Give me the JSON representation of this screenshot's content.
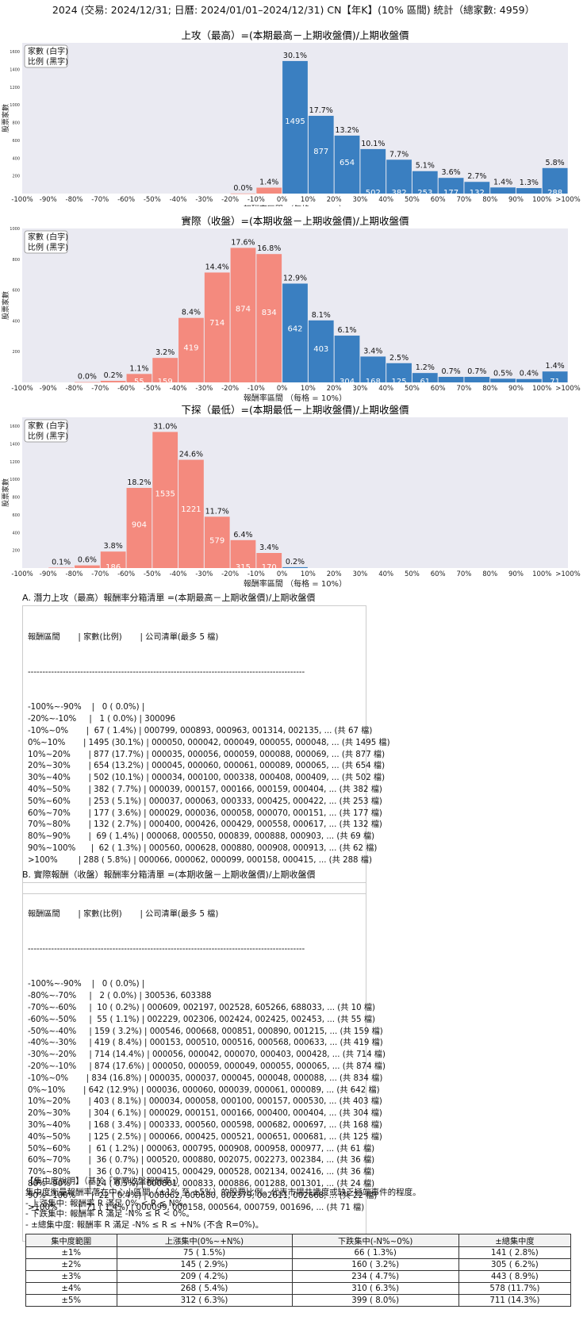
{
  "title": "2024 (交易: 2024/12/31; 日曆: 2024/01/01–2024/12/31) CN【年K】(10% 區間) 統計（總家數: 4959）",
  "legend": {
    "line1": "家數 (白字)",
    "line2": "比例 (黑字)"
  },
  "colors": {
    "positive": "#3a7fc1",
    "negative": "#f48a7e",
    "background": "#eaeaf2"
  },
  "chart_data": [
    {
      "type": "bar",
      "title": "上攻（最高）=(本期最高－上期收盤價)/上期收盤價",
      "xlabel": "報酬率區間 （每格 = 10%）",
      "ylabel": "股票家數",
      "ylim": [
        0,
        1700
      ],
      "yticks": [
        200,
        400,
        600,
        800,
        1000,
        1200,
        1400,
        1600
      ],
      "x_tick_labels": [
        "-100%",
        "-90%",
        "-80%",
        "-70%",
        "-60%",
        "-50%",
        "-40%",
        "-30%",
        "-20%",
        "-10%",
        "0%",
        "10%",
        "20%",
        "30%",
        "40%",
        "50%",
        "60%",
        "70%",
        "80%",
        "90%",
        "100%",
        ">100%"
      ],
      "bins": [
        {
          "bin": "-20%~-10%",
          "count": 1,
          "pct": "0.0%",
          "sign": "neg"
        },
        {
          "bin": "-10%~0%",
          "count": 67,
          "pct": "1.4%",
          "sign": "neg"
        },
        {
          "bin": "0%~10%",
          "count": 1495,
          "pct": "30.1%",
          "sign": "pos"
        },
        {
          "bin": "10%~20%",
          "count": 877,
          "pct": "17.7%",
          "sign": "pos"
        },
        {
          "bin": "20%~30%",
          "count": 654,
          "pct": "13.2%",
          "sign": "pos"
        },
        {
          "bin": "30%~40%",
          "count": 502,
          "pct": "10.1%",
          "sign": "pos"
        },
        {
          "bin": "40%~50%",
          "count": 382,
          "pct": "7.7%",
          "sign": "pos"
        },
        {
          "bin": "50%~60%",
          "count": 253,
          "pct": "5.1%",
          "sign": "pos"
        },
        {
          "bin": "60%~70%",
          "count": 177,
          "pct": "3.6%",
          "sign": "pos"
        },
        {
          "bin": "70%~80%",
          "count": 132,
          "pct": "2.7%",
          "sign": "pos"
        },
        {
          "bin": "80%~90%",
          "count": 69,
          "pct": "1.4%",
          "sign": "pos"
        },
        {
          "bin": "90%~100%",
          "count": 62,
          "pct": "1.3%",
          "sign": "pos"
        },
        {
          "bin": ">100%",
          "count": 288,
          "pct": "5.8%",
          "sign": "pos"
        }
      ]
    },
    {
      "type": "bar",
      "title": "實際（收盤）=(本期收盤－上期收盤價)/上期收盤價",
      "xlabel": "報酬率區間 （每格 = 10%）",
      "ylabel": "股票家數",
      "ylim": [
        0,
        1000
      ],
      "yticks": [
        200,
        400,
        600,
        800,
        1000
      ],
      "x_tick_labels": [
        "-100%",
        "-90%",
        "-80%",
        "-70%",
        "-60%",
        "-50%",
        "-40%",
        "-30%",
        "-20%",
        "-10%",
        "0%",
        "10%",
        "20%",
        "30%",
        "40%",
        "50%",
        "60%",
        "70%",
        "80%",
        "90%",
        "100%",
        ">100%"
      ],
      "bins": [
        {
          "bin": "-80%~-70%",
          "count": 2,
          "pct": "0.0%",
          "sign": "neg"
        },
        {
          "bin": "-70%~-60%",
          "count": 10,
          "pct": "0.2%",
          "sign": "neg"
        },
        {
          "bin": "-60%~-50%",
          "count": 55,
          "pct": "1.1%",
          "sign": "neg"
        },
        {
          "bin": "-50%~-40%",
          "count": 159,
          "pct": "3.2%",
          "sign": "neg"
        },
        {
          "bin": "-40%~-30%",
          "count": 419,
          "pct": "8.4%",
          "sign": "neg"
        },
        {
          "bin": "-30%~-20%",
          "count": 714,
          "pct": "14.4%",
          "sign": "neg"
        },
        {
          "bin": "-20%~-10%",
          "count": 874,
          "pct": "17.6%",
          "sign": "neg"
        },
        {
          "bin": "-10%~0%",
          "count": 834,
          "pct": "16.8%",
          "sign": "neg"
        },
        {
          "bin": "0%~10%",
          "count": 642,
          "pct": "12.9%",
          "sign": "pos"
        },
        {
          "bin": "10%~20%",
          "count": 403,
          "pct": "8.1%",
          "sign": "pos"
        },
        {
          "bin": "20%~30%",
          "count": 304,
          "pct": "6.1%",
          "sign": "pos"
        },
        {
          "bin": "30%~40%",
          "count": 168,
          "pct": "3.4%",
          "sign": "pos"
        },
        {
          "bin": "40%~50%",
          "count": 125,
          "pct": "2.5%",
          "sign": "pos"
        },
        {
          "bin": "50%~60%",
          "count": 61,
          "pct": "1.2%",
          "sign": "pos"
        },
        {
          "bin": "60%~70%",
          "count": 36,
          "pct": "0.7%",
          "sign": "pos"
        },
        {
          "bin": "70%~80%",
          "count": 36,
          "pct": "0.7%",
          "sign": "pos"
        },
        {
          "bin": "80%~90%",
          "count": 24,
          "pct": "0.5%",
          "sign": "pos"
        },
        {
          "bin": "90%~100%",
          "count": 22,
          "pct": "0.4%",
          "sign": "pos"
        },
        {
          "bin": ">100%",
          "count": 71,
          "pct": "1.4%",
          "sign": "pos"
        }
      ]
    },
    {
      "type": "bar",
      "title": "下探（最低）=(本期最低－上期收盤價)/上期收盤價",
      "xlabel": "報酬率區間 （每格 = 10%）",
      "ylabel": "股票家數",
      "ylim": [
        0,
        1700
      ],
      "yticks": [
        200,
        400,
        600,
        800,
        1000,
        1200,
        1400,
        1600
      ],
      "x_tick_labels": [
        "-100%",
        "-90%",
        "-80%",
        "-70%",
        "-60%",
        "-50%",
        "-40%",
        "-30%",
        "-20%",
        "-10%",
        "0%",
        "10%",
        "20%",
        "30%",
        "40%",
        "50%",
        "60%",
        "70%",
        "80%",
        "90%",
        "100%",
        ">100%"
      ],
      "bins": [
        {
          "bin": "-90%~-80%",
          "count": 5,
          "pct": "0.1%",
          "sign": "neg"
        },
        {
          "bin": "-80%~-70%",
          "count": 30,
          "pct": "0.6%",
          "sign": "neg"
        },
        {
          "bin": "-70%~-60%",
          "count": 186,
          "pct": "3.8%",
          "sign": "neg"
        },
        {
          "bin": "-60%~-50%",
          "count": 904,
          "pct": "18.2%",
          "sign": "neg"
        },
        {
          "bin": "-50%~-40%",
          "count": 1535,
          "pct": "31.0%",
          "sign": "neg"
        },
        {
          "bin": "-40%~-30%",
          "count": 1221,
          "pct": "24.6%",
          "sign": "neg"
        },
        {
          "bin": "-30%~-20%",
          "count": 579,
          "pct": "11.7%",
          "sign": "neg"
        },
        {
          "bin": "-20%~-10%",
          "count": 315,
          "pct": "6.4%",
          "sign": "neg"
        },
        {
          "bin": "-10%~0%",
          "count": 170,
          "pct": "3.4%",
          "sign": "neg"
        },
        {
          "bin": "0%~10%",
          "count": 10,
          "pct": "0.2%",
          "sign": "pos"
        }
      ]
    }
  ],
  "sectionA": {
    "title": "A. 潛力上攻（最高）報酬率分箱清單 =(本期最高－上期收盤價)/上期收盤價",
    "header": "報酬區間       | 家數(比例)       | 公司清單(最多 5 檔)",
    "separator": "-----------------------------------------------------------------------------------------------",
    "rows": [
      "-100%~-90%    |   0 ( 0.0%) |",
      "-20%~-10%     |   1 ( 0.0%) | 300096",
      "-10%~0%       |  67 ( 1.4%) | 000799, 000893, 000963, 001314, 002135, ... (共 67 檔)",
      "0%~10%       | 1495 (30.1%) | 000050, 000042, 000049, 000055, 000048, ... (共 1495 檔)",
      "10%~20%       | 877 (17.7%) | 000035, 000056, 000059, 000088, 000069, ... (共 877 檔)",
      "20%~30%       | 654 (13.2%) | 000045, 000060, 000061, 000089, 000065, ... (共 654 檔)",
      "30%~40%       | 502 (10.1%) | 000034, 000100, 000338, 000408, 000409, ... (共 502 檔)",
      "40%~50%       | 382 ( 7.7%) | 000039, 000157, 000166, 000159, 000404, ... (共 382 檔)",
      "50%~60%       | 253 ( 5.1%) | 000037, 000063, 000333, 000425, 000422, ... (共 253 檔)",
      "60%~70%       | 177 ( 3.6%) | 000029, 000036, 000058, 000070, 000151, ... (共 177 檔)",
      "70%~80%       | 132 ( 2.7%) | 000400, 000426, 000429, 000558, 000617, ... (共 132 檔)",
      "80%~90%       |  69 ( 1.4%) | 000068, 000550, 000839, 000888, 000903, ... (共 69 檔)",
      "90%~100%      |  62 ( 1.3%) | 000560, 000628, 000880, 000908, 000913, ... (共 62 檔)",
      ">100%        | 288 ( 5.8%) | 000066, 000062, 000099, 000158, 000415, ... (共 288 檔)"
    ]
  },
  "sectionB": {
    "title": "B. 實際報酬（收盤）報酬率分箱清單 =(本期收盤－上期收盤價)/上期收盤價",
    "header": "報酬區間       | 家數(比例)       | 公司清單(最多 5 檔)",
    "separator": "-----------------------------------------------------------------------------------------------",
    "rows": [
      "-100%~-90%    |   0 ( 0.0%) |",
      "-80%~-70%     |   2 ( 0.0%) | 300536, 603388",
      "-70%~-60%     |  10 ( 0.2%) | 000609, 002197, 002528, 605266, 688033, ... (共 10 檔)",
      "-60%~-50%     |  55 ( 1.1%) | 002229, 002306, 002424, 002425, 002453, ... (共 55 檔)",
      "-50%~-40%     | 159 ( 3.2%) | 000546, 000668, 000851, 000890, 001215, ... (共 159 檔)",
      "-40%~-30%     | 419 ( 8.4%) | 000153, 000510, 000516, 000568, 000633, ... (共 419 檔)",
      "-30%~-20%     | 714 (14.4%) | 000056, 000042, 000070, 000403, 000428, ... (共 714 檔)",
      "-20%~-10%     | 874 (17.6%) | 000050, 000059, 000049, 000055, 000065, ... (共 874 檔)",
      "-10%~0%       | 834 (16.8%) | 000035, 000037, 000045, 000048, 000088, ... (共 834 檔)",
      "0%~10%       | 642 (12.9%) | 000036, 000060, 000039, 000061, 000089, ... (共 642 檔)",
      "10%~20%       | 403 ( 8.1%) | 000034, 000058, 000100, 000157, 000530, ... (共 403 檔)",
      "20%~30%       | 304 ( 6.1%) | 000029, 000151, 000166, 000400, 000404, ... (共 304 檔)",
      "30%~40%       | 168 ( 3.4%) | 000333, 000560, 000598, 000682, 000697, ... (共 168 檔)",
      "40%~50%       | 125 ( 2.5%) | 000066, 000425, 000521, 000651, 000681, ... (共 125 檔)",
      "50%~60%       |  61 ( 1.2%) | 000063, 000795, 000908, 000958, 000977, ... (共 61 檔)",
      "60%~70%       |  36 ( 0.7%) | 000520, 000880, 002075, 002273, 002384, ... (共 36 檔)",
      "70%~80%       |  36 ( 0.7%) | 000415, 000429, 000528, 002134, 002416, ... (共 36 檔)",
      "80%~90%       |  24 ( 0.5%) | 000801, 000833, 000886, 001288, 001301, ... (共 24 檔)",
      "90%~100%      |  22 ( 0.4%) | 000062, 000680, 002379, 002611, 002668, ... (共 22 檔)",
      ">100%        |  71 ( 1.4%) | 000099, 000158, 000564, 000759, 001696, ... (共 71 檔)"
    ]
  },
  "concentration": {
    "heading": "【集中度說明】（基於「實際收盤報酬率」）",
    "desc": "集中度衡量報酬率落在中心小區間（±1% 至 ±5%）的股票比例，代表市場共識度或缺乏極端事件的程度。",
    "bullet1": " - 上漲集中: 報酬率 R 滿足 0% < R ≤ N%。",
    "bullet2": " - 下跌集中: 報酬率 R 滿足 -N% ≤ R < 0%。",
    "bullet3": " - ±總集中度: 報酬率 R 滿足 -N% ≤ R ≤ +N% (不含 R=0%)。",
    "table_headers": [
      "集中度範圍",
      "上漲集中(0%~+N%)",
      "下跌集中(-N%~0%)",
      "±總集中度"
    ],
    "table_rows": [
      [
        "±1%",
        "75 ( 1.5%)",
        "66 ( 1.3%)",
        "141 ( 2.8%)"
      ],
      [
        "±2%",
        "145 ( 2.9%)",
        "160 ( 3.2%)",
        "305 ( 6.2%)"
      ],
      [
        "±3%",
        "209 ( 4.2%)",
        "234 ( 4.7%)",
        "443 ( 8.9%)"
      ],
      [
        "±4%",
        "268 ( 5.4%)",
        "310 ( 6.3%)",
        "578 (11.7%)"
      ],
      [
        "±5%",
        "312 ( 6.3%)",
        "399 ( 8.0%)",
        "711 (14.3%)"
      ]
    ]
  }
}
